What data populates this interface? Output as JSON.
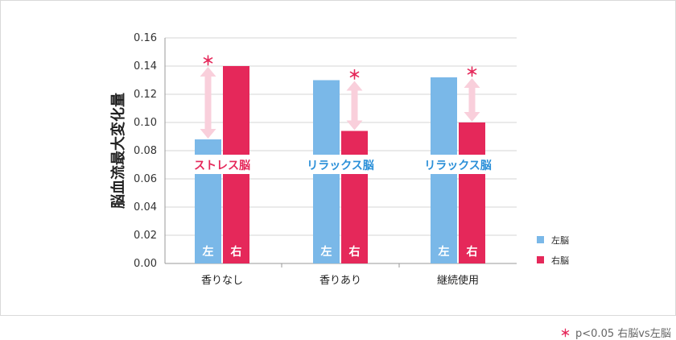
{
  "chart_data": {
    "type": "bar",
    "title": "",
    "ylabel": "脳血流最大変化量",
    "xlabel": "",
    "ylim": [
      0,
      0.16
    ],
    "yticks": [
      "0.00",
      "0.02",
      "0.04",
      "0.06",
      "0.08",
      "0.10",
      "0.12",
      "0.14",
      "0.16"
    ],
    "categories": [
      "香りなし",
      "香りあり",
      "継続使用"
    ],
    "series": [
      {
        "name": "左脳",
        "bar_label": "左",
        "color": "#7ab8e8",
        "values": [
          0.088,
          0.13,
          0.132
        ]
      },
      {
        "name": "右脳",
        "bar_label": "右",
        "color": "#e5285a",
        "values": [
          0.14,
          0.094,
          0.1
        ]
      }
    ],
    "annotations": [
      {
        "text": "ストレス脳",
        "color": "#e5285a"
      },
      {
        "text": "リラックス脳",
        "color": "#2a8fd8"
      },
      {
        "text": "リラックス脳",
        "color": "#2a8fd8"
      }
    ],
    "significance_marker": "＊",
    "legend_position": "right",
    "grid": true
  },
  "footnote": {
    "star": "＊",
    "text": "p<0.05 右脳vs左脳"
  }
}
